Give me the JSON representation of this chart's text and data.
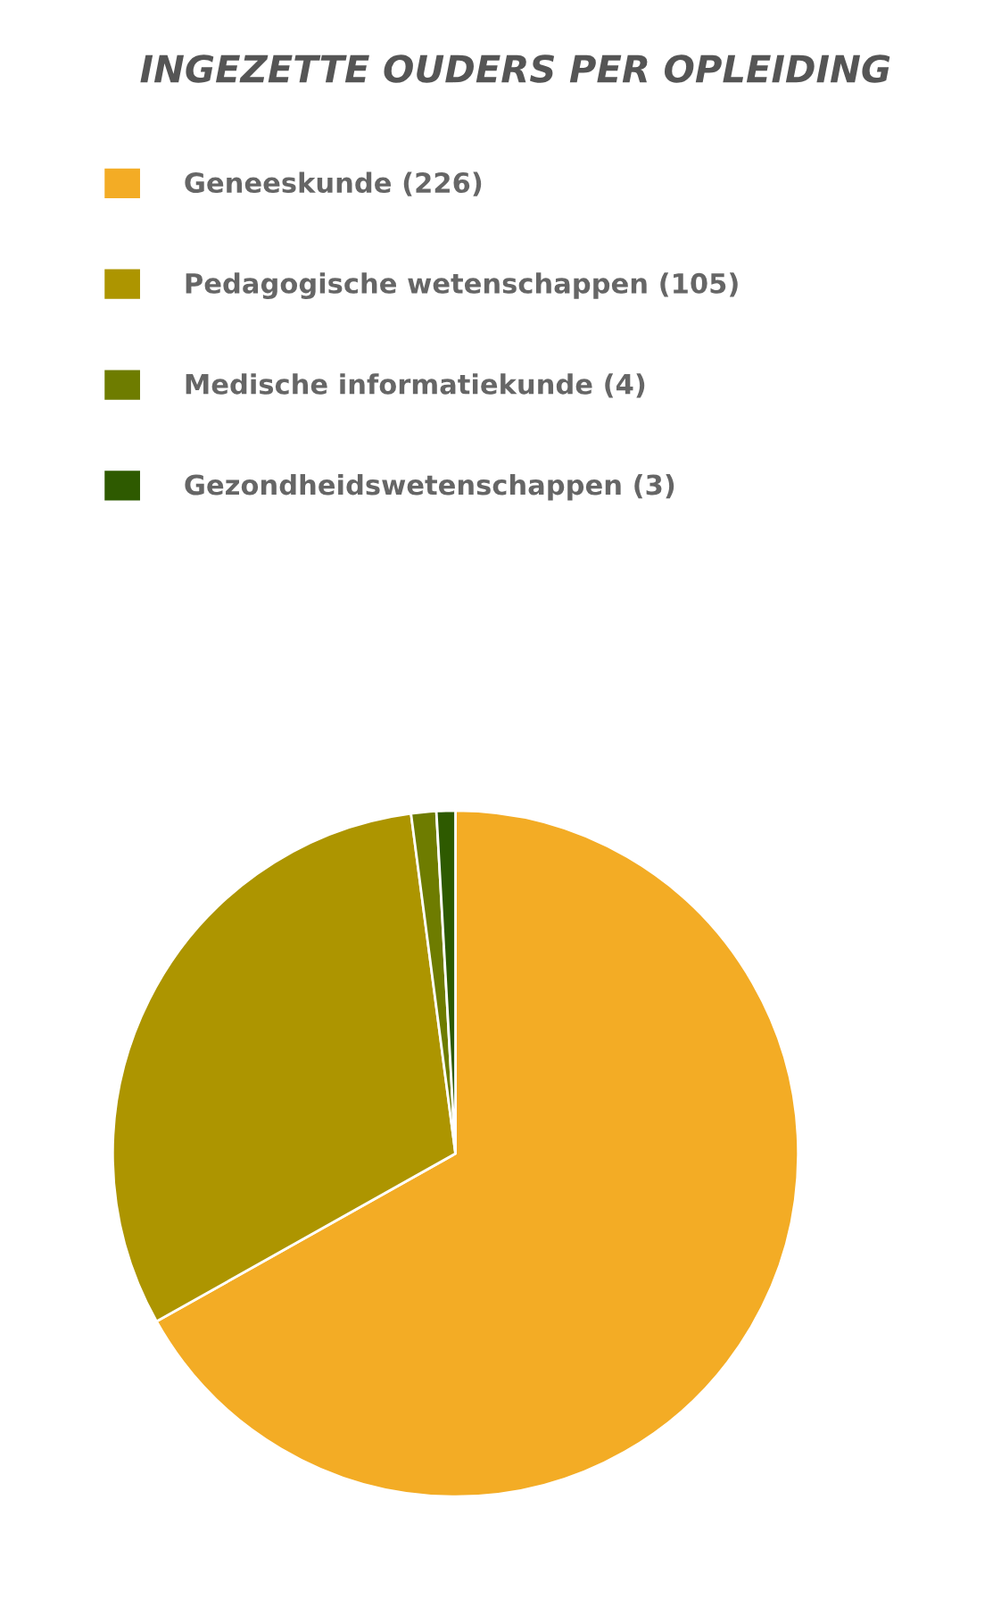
{
  "chart_data": {
    "type": "pie",
    "title": "INGEZETTE OUDERS PER OPLEIDING",
    "categories": [
      "Geneeskunde (226)",
      "Pedagogische wetenschappen (105)",
      "Medische informatiekunde (4)",
      "Gezondheidswetenschappen (3)"
    ],
    "values": [
      226,
      105,
      4,
      3
    ],
    "colors": [
      "#f3ac25",
      "#ad9500",
      "#6e7c00",
      "#2e5a00"
    ],
    "legend": "top"
  }
}
